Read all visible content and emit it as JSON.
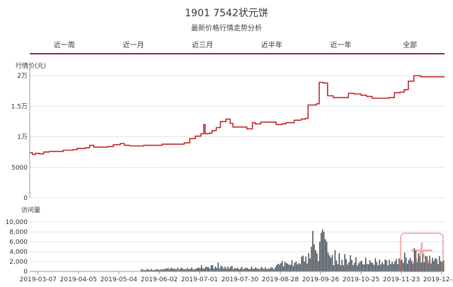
{
  "header": {
    "title": "1901 7542状元饼",
    "subtitle": "最新价格行情走势分析"
  },
  "range_tabs": [
    "近一周",
    "近一月",
    "近三月",
    "近半年",
    "近一年",
    "全部"
  ],
  "watermark": {
    "text": "大",
    "description": "logo-stamp"
  },
  "colors": {
    "price_line": "#c0282c",
    "bars": "#3f4a52",
    "accent": "#b0202a"
  },
  "chart_data": [
    {
      "type": "line",
      "ylabel": "行情价(元)",
      "ylim": [
        0,
        20000
      ],
      "yticks": [
        0,
        5000,
        10000,
        15000,
        20000
      ],
      "ytick_labels": [
        "0",
        "5000",
        "1万",
        "1.5万",
        "2万"
      ],
      "grid": true,
      "x_start": "2019-03-01",
      "x_end": "2019-12-24",
      "x_tick_labels": [
        "2019-03-07",
        "2019-04-05",
        "2019-05-04",
        "2019-06-02",
        "2019-07-01",
        "2019-07-30",
        "2019-08-28",
        "2019-09-26",
        "2019-10-25",
        "2019-11-23",
        "2019-12-22"
      ],
      "series": [
        {
          "points": [
            [
              "2019-03-01",
              7400
            ],
            [
              "2019-03-03",
              7100
            ],
            [
              "2019-03-05",
              7300
            ],
            [
              "2019-03-08",
              7200
            ],
            [
              "2019-03-11",
              7500
            ],
            [
              "2019-03-15",
              7600
            ],
            [
              "2019-03-22",
              7600
            ],
            [
              "2019-03-25",
              7800
            ],
            [
              "2019-04-01",
              7900
            ],
            [
              "2019-04-04",
              8100
            ],
            [
              "2019-04-10",
              8200
            ],
            [
              "2019-04-13",
              8600
            ],
            [
              "2019-04-16",
              8300
            ],
            [
              "2019-04-26",
              8400
            ],
            [
              "2019-04-30",
              8700
            ],
            [
              "2019-05-05",
              8900
            ],
            [
              "2019-05-08",
              8600
            ],
            [
              "2019-05-12",
              8500
            ],
            [
              "2019-05-22",
              8600
            ],
            [
              "2019-06-01",
              8600
            ],
            [
              "2019-06-04",
              8800
            ],
            [
              "2019-06-15",
              8800
            ],
            [
              "2019-06-20",
              9000
            ],
            [
              "2019-06-24",
              9700
            ],
            [
              "2019-06-28",
              10100
            ],
            [
              "2019-07-02",
              10500
            ],
            [
              "2019-07-04",
              12000
            ],
            [
              "2019-07-05",
              10500
            ],
            [
              "2019-07-08",
              10600
            ],
            [
              "2019-07-10",
              11000
            ],
            [
              "2019-07-13",
              11500
            ],
            [
              "2019-07-16",
              12500
            ],
            [
              "2019-07-20",
              12900
            ],
            [
              "2019-07-23",
              12200
            ],
            [
              "2019-07-25",
              11600
            ],
            [
              "2019-08-04",
              11300
            ],
            [
              "2019-08-08",
              12300
            ],
            [
              "2019-08-10",
              12100
            ],
            [
              "2019-08-14",
              12400
            ],
            [
              "2019-08-22",
              12400
            ],
            [
              "2019-08-25",
              12000
            ],
            [
              "2019-08-29",
              12100
            ],
            [
              "2019-09-01",
              12300
            ],
            [
              "2019-09-07",
              12700
            ],
            [
              "2019-09-12",
              12900
            ],
            [
              "2019-09-15",
              13000
            ],
            [
              "2019-09-17",
              15200
            ],
            [
              "2019-09-23",
              15400
            ],
            [
              "2019-09-25",
              18900
            ],
            [
              "2019-09-28",
              18800
            ],
            [
              "2019-10-01",
              16700
            ],
            [
              "2019-10-05",
              16400
            ],
            [
              "2019-10-12",
              16400
            ],
            [
              "2019-10-16",
              17100
            ],
            [
              "2019-10-20",
              17000
            ],
            [
              "2019-10-25",
              16800
            ],
            [
              "2019-10-29",
              16600
            ],
            [
              "2019-11-02",
              16300
            ],
            [
              "2019-11-06",
              16300
            ],
            [
              "2019-11-14",
              16400
            ],
            [
              "2019-11-18",
              17200
            ],
            [
              "2019-11-22",
              17300
            ],
            [
              "2019-11-25",
              17700
            ],
            [
              "2019-11-28",
              19100
            ],
            [
              "2019-12-02",
              20000
            ],
            [
              "2019-12-07",
              19800
            ],
            [
              "2019-12-24",
              19800
            ]
          ]
        }
      ]
    },
    {
      "type": "bar",
      "ylabel": "访问量",
      "ylim": [
        0,
        10000
      ],
      "yticks": [
        0,
        2000,
        4000,
        6000,
        8000,
        10000
      ],
      "ytick_labels": [
        "0",
        "2,000",
        "4,000",
        "6,000",
        "8,000",
        "10,000"
      ],
      "grid": true,
      "x_start": "2019-03-01",
      "x_end": "2019-12-24",
      "x_tick_labels": [
        "2019-03-07",
        "2019-04-05",
        "2019-05-04",
        "2019-06-02",
        "2019-07-01",
        "2019-07-30",
        "2019-08-28",
        "2019-09-26",
        "2019-10-25",
        "2019-11-23",
        "2019-12-22"
      ],
      "series": [
        {
          "baseline_segments": [
            [
              "2019-05-20",
              "2019-06-05",
              400
            ],
            [
              "2019-06-05",
              "2019-06-30",
              600
            ],
            [
              "2019-06-30",
              "2019-07-25",
              900
            ],
            [
              "2019-07-25",
              "2019-08-25",
              700
            ],
            [
              "2019-08-25",
              "2019-09-10",
              1700
            ],
            [
              "2019-09-10",
              "2019-09-17",
              2300
            ],
            [
              "2019-09-17",
              "2019-10-05",
              3200
            ],
            [
              "2019-10-05",
              "2019-11-20",
              2000
            ],
            [
              "2019-11-20",
              "2019-12-24",
              2400
            ]
          ],
          "peaks": [
            [
              "2019-07-10",
              1300
            ],
            [
              "2019-07-14",
              1800
            ],
            [
              "2019-09-13",
              3200
            ],
            [
              "2019-09-17",
              3700
            ],
            [
              "2019-09-19",
              5000
            ],
            [
              "2019-09-20",
              8200
            ],
            [
              "2019-09-21",
              5500
            ],
            [
              "2019-09-22",
              4300
            ],
            [
              "2019-09-23",
              3700
            ],
            [
              "2019-09-25",
              6000
            ],
            [
              "2019-09-26",
              7800
            ],
            [
              "2019-09-27",
              8500
            ],
            [
              "2019-09-28",
              8000
            ],
            [
              "2019-09-29",
              6500
            ],
            [
              "2019-09-30",
              6000
            ],
            [
              "2019-10-01",
              3800
            ],
            [
              "2019-10-04",
              3300
            ],
            [
              "2019-10-06",
              4300
            ],
            [
              "2019-10-09",
              3700
            ],
            [
              "2019-10-13",
              3500
            ],
            [
              "2019-10-17",
              3300
            ],
            [
              "2019-10-21",
              2900
            ],
            [
              "2019-11-25",
              3800
            ],
            [
              "2019-11-26",
              2800
            ],
            [
              "2019-11-28",
              2300
            ],
            [
              "2019-12-02",
              4700
            ],
            [
              "2019-12-03",
              4200
            ],
            [
              "2019-12-05",
              3700
            ],
            [
              "2019-12-08",
              3500
            ],
            [
              "2019-12-11",
              3100
            ],
            [
              "2019-12-15",
              2800
            ]
          ]
        }
      ]
    }
  ]
}
